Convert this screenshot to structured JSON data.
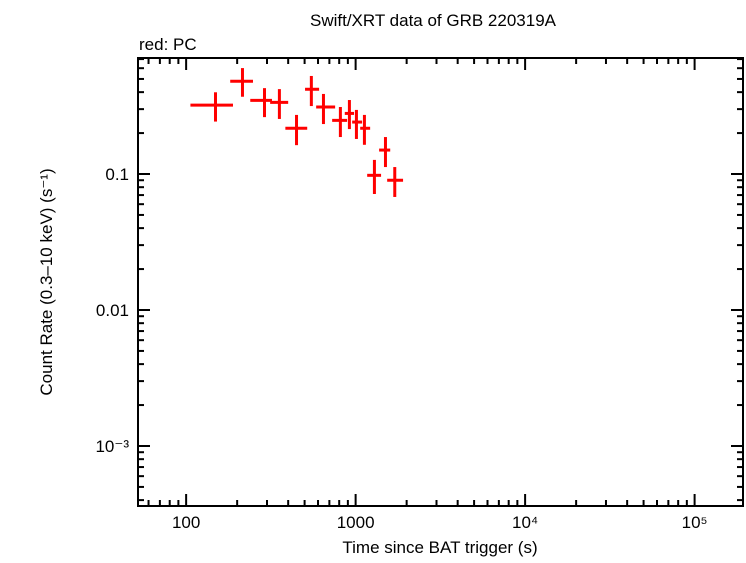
{
  "chart_data": {
    "type": "scatter",
    "title": "Swift/XRT data of GRB 220319A",
    "legend_text": "red: PC",
    "xlabel": "Time since BAT trigger (s)",
    "ylabel": "Count Rate (0.3–10 keV) (s⁻¹)",
    "x_scale": "log",
    "y_scale": "log",
    "xlim": [
      52,
      193000
    ],
    "ylim": [
      0.000362,
      0.713
    ],
    "x_ticks": [
      {
        "value": 100,
        "label": "100"
      },
      {
        "value": 1000,
        "label": "1000"
      },
      {
        "value": 10000,
        "label": "10⁴"
      },
      {
        "value": 100000,
        "label": "10⁵"
      }
    ],
    "y_ticks": [
      {
        "value": 0.1,
        "label": "0.1"
      },
      {
        "value": 0.01,
        "label": "0.01"
      },
      {
        "value": 0.001,
        "label": "10⁻³"
      }
    ],
    "grid": false,
    "series": [
      {
        "color": "#ff0000",
        "points": [
          {
            "x": 149,
            "xlo": 106,
            "xhi": 189,
            "y": 0.321,
            "ylo": 0.243,
            "yhi": 0.399
          },
          {
            "x": 215,
            "xlo": 182,
            "xhi": 248,
            "y": 0.481,
            "ylo": 0.37,
            "yhi": 0.601
          },
          {
            "x": 290,
            "xlo": 239,
            "xhi": 321,
            "y": 0.348,
            "ylo": 0.262,
            "yhi": 0.428
          },
          {
            "x": 355,
            "xlo": 313,
            "xhi": 400,
            "y": 0.336,
            "ylo": 0.254,
            "yhi": 0.421
          },
          {
            "x": 448,
            "xlo": 385,
            "xhi": 518,
            "y": 0.217,
            "ylo": 0.163,
            "yhi": 0.272
          },
          {
            "x": 548,
            "xlo": 503,
            "xhi": 609,
            "y": 0.42,
            "ylo": 0.316,
            "yhi": 0.526
          },
          {
            "x": 646,
            "xlo": 585,
            "xhi": 757,
            "y": 0.311,
            "ylo": 0.233,
            "yhi": 0.388
          },
          {
            "x": 813,
            "xlo": 727,
            "xhi": 891,
            "y": 0.248,
            "ylo": 0.187,
            "yhi": 0.311
          },
          {
            "x": 919,
            "xlo": 863,
            "xhi": 979,
            "y": 0.279,
            "ylo": 0.214,
            "yhi": 0.35
          },
          {
            "x": 1011,
            "xlo": 954,
            "xhi": 1092,
            "y": 0.241,
            "ylo": 0.181,
            "yhi": 0.296
          },
          {
            "x": 1127,
            "xlo": 1064,
            "xhi": 1218,
            "y": 0.217,
            "ylo": 0.164,
            "yhi": 0.272
          },
          {
            "x": 1291,
            "xlo": 1170,
            "xhi": 1413,
            "y": 0.0978,
            "ylo": 0.0713,
            "yhi": 0.127
          },
          {
            "x": 1500,
            "xlo": 1376,
            "xhi": 1600,
            "y": 0.15,
            "ylo": 0.1125,
            "yhi": 0.187
          },
          {
            "x": 1702,
            "xlo": 1535,
            "xhi": 1905,
            "y": 0.0899,
            "ylo": 0.0678,
            "yhi": 0.1125
          }
        ]
      }
    ]
  }
}
